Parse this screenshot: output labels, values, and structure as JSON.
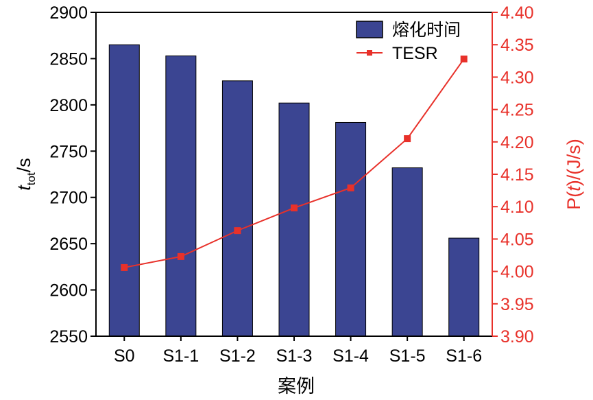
{
  "chart_data": {
    "type": "bar",
    "categories": [
      "S0",
      "S1-1",
      "S1-2",
      "S1-3",
      "S1-4",
      "S1-5",
      "S1-6"
    ],
    "series": [
      {
        "name": "熔化时间",
        "type": "bar",
        "axis": "left",
        "values": [
          2865,
          2853,
          2826,
          2802,
          2781,
          2732,
          2656
        ],
        "color": "#3b4592"
      },
      {
        "name": "TESR",
        "type": "line",
        "axis": "right",
        "values": [
          4.006,
          4.023,
          4.063,
          4.098,
          4.129,
          4.205,
          4.328
        ],
        "color": "#e8312a"
      }
    ],
    "title": "",
    "xlabel": "案例",
    "ylabel_left": {
      "main": "t",
      "sub": "tot",
      "unit": "/s"
    },
    "ylabel_right": {
      "pre": "P(",
      "var": "t",
      "post": ")/(J/s)"
    },
    "ylim_left": [
      2550,
      2900
    ],
    "yticks_left": [
      "2550",
      "2600",
      "2650",
      "2700",
      "2750",
      "2800",
      "2850",
      "2900"
    ],
    "ylim_right": [
      3.9,
      4.4
    ],
    "yticks_right": [
      "3.90",
      "3.95",
      "4.00",
      "4.05",
      "4.10",
      "4.15",
      "4.20",
      "4.25",
      "4.30",
      "4.35",
      "4.40"
    ],
    "legend_position": "top-right",
    "grid": false,
    "axis_color_right": "#e8312a"
  }
}
